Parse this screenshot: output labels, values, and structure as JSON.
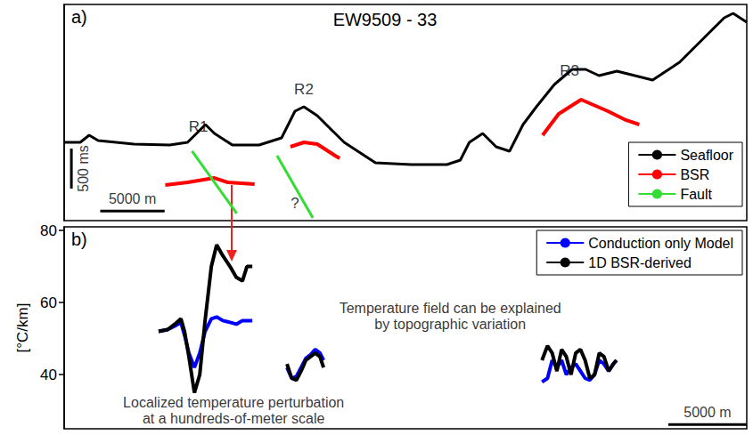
{
  "chart_data": [
    {
      "type": "line",
      "panel_label": "a)",
      "title": "EW9509 - 33",
      "xlim": [
        0,
        53
      ],
      "ylim": [
        0,
        2700
      ],
      "tick_labels": false,
      "grid": false,
      "legend": "bottom right",
      "series": [
        {
          "name": "Seafloor",
          "color": "#000000",
          "marker": "none",
          "line_style": "solid",
          "segments": [
            {
              "x": [
                0,
                1.25,
                1.94,
                2.64,
                5.42,
                8.19,
                9.58,
                10.28,
                10.97,
                11.67,
                13.06,
                15.14,
                16.88,
                17.92,
                18.61,
                19.65,
                20.69,
                21.74,
                24.17,
                26.94,
                29.72,
                30.76,
                31.46,
                32.5,
                33.54,
                34.58,
                35.63,
                36.67,
                38.06,
                39.44,
                40.49,
                41.53,
                42.92,
                44.31,
                45.69,
                47.78,
                49.86,
                51.25,
                51.94,
                53.0
              ],
              "values": [
                1722,
                1722,
                1633,
                1700,
                1744,
                1756,
                1722,
                1611,
                1500,
                1611,
                1756,
                1756,
                1667,
                1333,
                1278,
                1389,
                1556,
                1722,
                1978,
                2000,
                2000,
                1944,
                1722,
                1611,
                1778,
                1833,
                1500,
                1278,
                1000,
                811,
                811,
                889,
                833,
                889,
                944,
                722,
                389,
                167,
                111,
                222
              ]
            }
          ]
        },
        {
          "name": "BSR",
          "color": "#ff0000",
          "marker": "none",
          "line_style": "solid",
          "segments": [
            {
              "x": [
                7.85,
                9.58,
                11.67,
                12.71,
                14.79
              ],
              "values": [
                2256,
                2222,
                2167,
                2222,
                2244
              ]
            },
            {
              "x": [
                17.57,
                18.61,
                19.65,
                21.04,
                21.39
              ],
              "values": [
                1778,
                1722,
                1744,
                1889,
                1922
              ]
            },
            {
              "x": [
                37.15,
                38.4,
                40.14,
                42.22,
                43.61,
                44.65
              ],
              "values": [
                1633,
                1367,
                1189,
                1333,
                1444,
                1500
              ]
            }
          ]
        },
        {
          "name": "Fault",
          "color": "#33dd33",
          "marker": "none",
          "line_style": "solid",
          "segments": [
            {
              "x": [
                9.93,
                13.4
              ],
              "values": [
                1833,
                2611
              ]
            },
            {
              "x": [
                16.53,
                19.31
              ],
              "values": [
                1889,
                2667
              ]
            }
          ]
        }
      ],
      "annotations": [
        {
          "text": "R1",
          "x": 10.42,
          "y": 1533
        },
        {
          "text": "R2",
          "x": 18.61,
          "y": 1056
        },
        {
          "text": "R3",
          "x": 39.24,
          "y": 833
        },
        {
          "text": "?",
          "x": 17.92,
          "y": 2478
        }
      ],
      "scale_bars": [
        {
          "label": "5000 m",
          "x": [
            2.8,
            7.8
          ],
          "values": [
            2580,
            2580
          ]
        },
        {
          "label": "500 ms",
          "x": [
            0.56,
            0.56
          ],
          "values": [
            1800,
            2300
          ]
        }
      ]
    },
    {
      "type": "line",
      "panel_label": "b)",
      "ylabel": "[°C/km]",
      "xlim": [
        0,
        43.5
      ],
      "ylim": [
        25,
        81
      ],
      "yticks": [
        40,
        60,
        80
      ],
      "tick_labels": "y",
      "grid": false,
      "legend": "top right",
      "series": [
        {
          "name": "Conduction only Model",
          "color": "#0000ff",
          "marker": "none",
          "line_style": "solid",
          "segments": [
            {
              "x": [
                6.02,
                6.59,
                7.05,
                7.44,
                7.67,
                7.95,
                8.3,
                8.64,
                8.98,
                9.38,
                9.72,
                10.11,
                10.57,
                10.97,
                11.36,
                11.99
              ],
              "values": [
                52,
                52.5,
                53.5,
                54.5,
                51,
                46,
                42,
                46,
                52,
                55.5,
                56,
                55,
                54.5,
                54,
                55,
                55
              ]
            },
            {
              "x": [
                14.2,
                14.5,
                14.8,
                15.1,
                15.4,
                15.7,
                16.0,
                16.3,
                16.53
              ],
              "values": [
                42,
                39,
                39.5,
                42,
                44.5,
                45.5,
                47,
                46,
                44
              ]
            },
            {
              "x": [
                30.45,
                30.8,
                31.1,
                31.4,
                31.7,
                32.0,
                32.3,
                32.6,
                32.9,
                33.2,
                33.5,
                33.8,
                34.1,
                34.4,
                34.7,
                35.0,
                35.2
              ],
              "values": [
                38,
                39,
                44,
                42,
                44,
                40,
                42,
                43,
                41,
                39,
                38.5,
                40,
                44,
                43,
                41,
                43,
                44
              ]
            }
          ]
        },
        {
          "name": "1D BSR-derived",
          "color": "#000000",
          "marker": "none",
          "line_style": "solid",
          "segments": [
            {
              "x": [
                6.02,
                6.59,
                7.05,
                7.44,
                7.67,
                7.95,
                8.3,
                8.64,
                8.98,
                9.38,
                9.72,
                10.11,
                10.57,
                10.97,
                11.36,
                11.65,
                11.99
              ],
              "values": [
                52,
                52.5,
                54,
                55.5,
                52,
                45,
                35,
                40,
                55,
                70,
                76,
                73,
                70,
                67,
                66,
                70,
                70
              ]
            },
            {
              "x": [
                14.2,
                14.5,
                14.8,
                15.1,
                15.4,
                15.7,
                16.0,
                16.3,
                16.53
              ],
              "values": [
                43,
                39,
                38.5,
                41,
                44,
                45,
                46,
                45,
                42
              ]
            },
            {
              "x": [
                30.45,
                30.8,
                31.1,
                31.4,
                31.7,
                32.0,
                32.3,
                32.6,
                32.9,
                33.2,
                33.5,
                33.8,
                34.1,
                34.4,
                34.7,
                35.0,
                35.2
              ],
              "values": [
                44,
                48,
                46,
                41,
                47,
                45,
                40,
                46,
                47,
                44,
                39,
                40,
                46,
                45,
                41,
                43,
                44
              ]
            }
          ]
        }
      ],
      "annotations": [
        {
          "text": [
            "Temperature field can be explained",
            "by topographic variation"
          ],
          "x": 24.6,
          "y": 56.2
        },
        {
          "text": [
            "Localized temperature perturbation",
            "at a hundreds-of-meter scale"
          ],
          "x": 10.8,
          "y": 30
        }
      ],
      "scale_bars": [
        {
          "label": "5000 m",
          "x": [
            38.5,
            43.5
          ],
          "values": [
            26.2,
            26.2
          ]
        }
      ]
    }
  ]
}
